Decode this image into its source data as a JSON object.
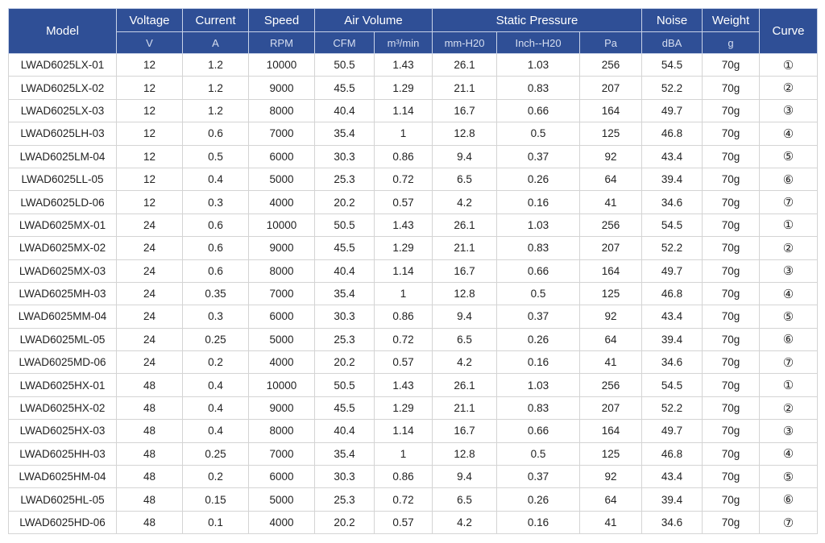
{
  "header": {
    "model": "Model",
    "voltage": "Voltage",
    "current": "Current",
    "speed": "Speed",
    "air_volume": "Air Volume",
    "static_pressure": "Static Pressure",
    "noise": "Noise",
    "weight": "Weight",
    "curve": "Curve",
    "units": [
      "V",
      "A",
      "RPM",
      "CFM",
      "m³/min",
      "mm-H20",
      "Inch--H20",
      "Pa",
      "dBA",
      "g"
    ]
  },
  "rows": [
    [
      "LWAD6025LX-01",
      "12",
      "1.2",
      "10000",
      "50.5",
      "1.43",
      "26.1",
      "1.03",
      "256",
      "54.5",
      "70g",
      "①"
    ],
    [
      "LWAD6025LX-02",
      "12",
      "1.2",
      "9000",
      "45.5",
      "1.29",
      "21.1",
      "0.83",
      "207",
      "52.2",
      "70g",
      "②"
    ],
    [
      "LWAD6025LX-03",
      "12",
      "1.2",
      "8000",
      "40.4",
      "1.14",
      "16.7",
      "0.66",
      "164",
      "49.7",
      "70g",
      "③"
    ],
    [
      "LWAD6025LH-03",
      "12",
      "0.6",
      "7000",
      "35.4",
      "1",
      "12.8",
      "0.5",
      "125",
      "46.8",
      "70g",
      "④"
    ],
    [
      "LWAD6025LM-04",
      "12",
      "0.5",
      "6000",
      "30.3",
      "0.86",
      "9.4",
      "0.37",
      "92",
      "43.4",
      "70g",
      "⑤"
    ],
    [
      "LWAD6025LL-05",
      "12",
      "0.4",
      "5000",
      "25.3",
      "0.72",
      "6.5",
      "0.26",
      "64",
      "39.4",
      "70g",
      "⑥"
    ],
    [
      "LWAD6025LD-06",
      "12",
      "0.3",
      "4000",
      "20.2",
      "0.57",
      "4.2",
      "0.16",
      "41",
      "34.6",
      "70g",
      "⑦"
    ],
    [
      "LWAD6025MX-01",
      "24",
      "0.6",
      "10000",
      "50.5",
      "1.43",
      "26.1",
      "1.03",
      "256",
      "54.5",
      "70g",
      "①"
    ],
    [
      "LWAD6025MX-02",
      "24",
      "0.6",
      "9000",
      "45.5",
      "1.29",
      "21.1",
      "0.83",
      "207",
      "52.2",
      "70g",
      "②"
    ],
    [
      "LWAD6025MX-03",
      "24",
      "0.6",
      "8000",
      "40.4",
      "1.14",
      "16.7",
      "0.66",
      "164",
      "49.7",
      "70g",
      "③"
    ],
    [
      "LWAD6025MH-03",
      "24",
      "0.35",
      "7000",
      "35.4",
      "1",
      "12.8",
      "0.5",
      "125",
      "46.8",
      "70g",
      "④"
    ],
    [
      "LWAD6025MM-04",
      "24",
      "0.3",
      "6000",
      "30.3",
      "0.86",
      "9.4",
      "0.37",
      "92",
      "43.4",
      "70g",
      "⑤"
    ],
    [
      "LWAD6025ML-05",
      "24",
      "0.25",
      "5000",
      "25.3",
      "0.72",
      "6.5",
      "0.26",
      "64",
      "39.4",
      "70g",
      "⑥"
    ],
    [
      "LWAD6025MD-06",
      "24",
      "0.2",
      "4000",
      "20.2",
      "0.57",
      "4.2",
      "0.16",
      "41",
      "34.6",
      "70g",
      "⑦"
    ],
    [
      "LWAD6025HX-01",
      "48",
      "0.4",
      "10000",
      "50.5",
      "1.43",
      "26.1",
      "1.03",
      "256",
      "54.5",
      "70g",
      "①"
    ],
    [
      "LWAD6025HX-02",
      "48",
      "0.4",
      "9000",
      "45.5",
      "1.29",
      "21.1",
      "0.83",
      "207",
      "52.2",
      "70g",
      "②"
    ],
    [
      "LWAD6025HX-03",
      "48",
      "0.4",
      "8000",
      "40.4",
      "1.14",
      "16.7",
      "0.66",
      "164",
      "49.7",
      "70g",
      "③"
    ],
    [
      "LWAD6025HH-03",
      "48",
      "0.25",
      "7000",
      "35.4",
      "1",
      "12.8",
      "0.5",
      "125",
      "46.8",
      "70g",
      "④"
    ],
    [
      "LWAD6025HM-04",
      "48",
      "0.2",
      "6000",
      "30.3",
      "0.86",
      "9.4",
      "0.37",
      "92",
      "43.4",
      "70g",
      "⑤"
    ],
    [
      "LWAD6025HL-05",
      "48",
      "0.15",
      "5000",
      "25.3",
      "0.72",
      "6.5",
      "0.26",
      "64",
      "39.4",
      "70g",
      "⑥"
    ],
    [
      "LWAD6025HD-06",
      "48",
      "0.1",
      "4000",
      "20.2",
      "0.57",
      "4.2",
      "0.16",
      "41",
      "34.6",
      "70g",
      "⑦"
    ]
  ],
  "colors": {
    "header_bg": "#2f4f96",
    "header_text": "#ffffff",
    "border": "#d4d4d4"
  }
}
